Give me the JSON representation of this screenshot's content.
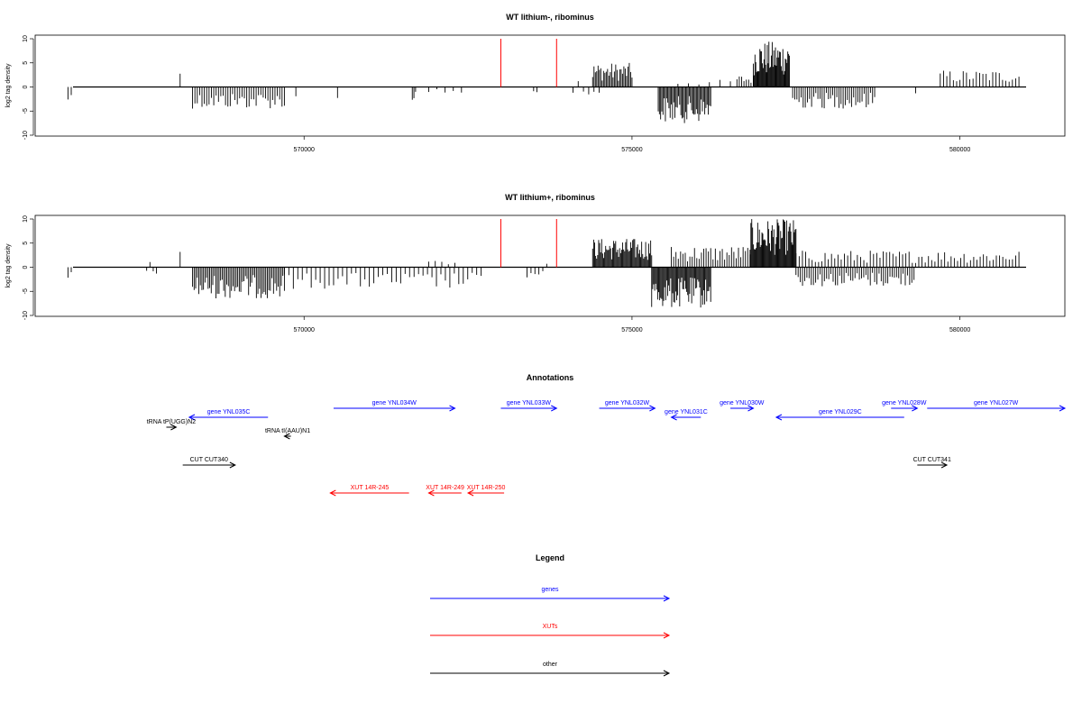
{
  "chart_data": [
    {
      "type": "bar",
      "title": "WT lithium-, riboминus",
      "ylabel": "log2 tag density",
      "xlabel": "",
      "xlim": [
        565900,
        581600
      ],
      "ylim": [
        -10,
        10
      ],
      "x_ticks": [
        "570000",
        "575000",
        "580000"
      ],
      "y_ticks": [
        "10",
        "5",
        "0",
        "-5",
        "-10"
      ],
      "features": [
        {
          "name": "highlight-1",
          "x": 573000,
          "color": "#ff0000"
        },
        {
          "name": "highlight-2",
          "x": 573850,
          "color": "#ff0000"
        }
      ],
      "segments": [
        {
          "start": 566400,
          "end": 566450,
          "min": -3.5,
          "max": 0,
          "density": 2
        },
        {
          "start": 568100,
          "end": 568120,
          "min": 0,
          "max": 3.8,
          "density": 1
        },
        {
          "start": 568300,
          "end": 569700,
          "min": -4.5,
          "max": 0,
          "density": 40
        },
        {
          "start": 569850,
          "end": 569900,
          "min": -4.0,
          "max": 0,
          "density": 1
        },
        {
          "start": 570500,
          "end": 570520,
          "min": -3.5,
          "max": 0,
          "density": 1
        },
        {
          "start": 571650,
          "end": 571700,
          "min": -3.0,
          "max": 0,
          "density": 3
        },
        {
          "start": 571900,
          "end": 572400,
          "min": -1.5,
          "max": 0,
          "density": 5
        },
        {
          "start": 573500,
          "end": 573550,
          "min": -2.0,
          "max": 0,
          "density": 2
        },
        {
          "start": 574100,
          "end": 574500,
          "min": -2.0,
          "max": 2.0,
          "density": 6
        },
        {
          "start": 574400,
          "end": 575000,
          "min": 0,
          "max": 5.0,
          "density": 30
        },
        {
          "start": 575400,
          "end": 576200,
          "min": -7.5,
          "max": 0,
          "density": 45
        },
        {
          "start": 575700,
          "end": 576500,
          "min": 0,
          "max": 1.5,
          "density": 6
        },
        {
          "start": 576600,
          "end": 576850,
          "min": 0,
          "max": 2.5,
          "density": 8
        },
        {
          "start": 576850,
          "end": 577400,
          "min": 0,
          "max": 9.5,
          "density": 45
        },
        {
          "start": 577450,
          "end": 578700,
          "min": -4.5,
          "max": 0,
          "density": 40
        },
        {
          "start": 579300,
          "end": 579350,
          "min": -1.5,
          "max": 0,
          "density": 1
        },
        {
          "start": 579700,
          "end": 580900,
          "min": 0,
          "max": 3.5,
          "density": 25
        }
      ]
    },
    {
      "type": "bar",
      "title": "WT lithium+, riboминus",
      "ylabel": "log2 tag density",
      "xlabel": "",
      "xlim": [
        565900,
        581600
      ],
      "ylim": [
        -10,
        10
      ],
      "x_ticks": [
        "570000",
        "575000",
        "580000"
      ],
      "y_ticks": [
        "10",
        "5",
        "0",
        "-5",
        "-10"
      ],
      "features": [
        {
          "name": "highlight-1",
          "x": 573000,
          "color": "#ff0000"
        },
        {
          "name": "highlight-2",
          "x": 573850,
          "color": "#ff0000"
        }
      ],
      "segments": [
        {
          "start": 566400,
          "end": 566450,
          "min": -3.5,
          "max": 0,
          "density": 2
        },
        {
          "start": 567600,
          "end": 567650,
          "min": -1.0,
          "max": 2.5,
          "density": 2
        },
        {
          "start": 567700,
          "end": 567750,
          "min": -3.0,
          "max": 0,
          "density": 2
        },
        {
          "start": 568100,
          "end": 568120,
          "min": 0,
          "max": 3.8,
          "density": 1
        },
        {
          "start": 568300,
          "end": 569700,
          "min": -6.5,
          "max": 0,
          "density": 60
        },
        {
          "start": 569700,
          "end": 572700,
          "min": -4.5,
          "max": 0,
          "density": 45
        },
        {
          "start": 571900,
          "end": 572300,
          "min": 0,
          "max": 1.5,
          "density": 5
        },
        {
          "start": 573400,
          "end": 573700,
          "min": -2.5,
          "max": 2.0,
          "density": 6
        },
        {
          "start": 574400,
          "end": 575300,
          "min": 0,
          "max": 6.0,
          "density": 60
        },
        {
          "start": 575300,
          "end": 576200,
          "min": -8.5,
          "max": 0,
          "density": 60
        },
        {
          "start": 575600,
          "end": 576800,
          "min": 0,
          "max": 4.5,
          "density": 35
        },
        {
          "start": 576800,
          "end": 577500,
          "min": 0,
          "max": 10.0,
          "density": 55
        },
        {
          "start": 577500,
          "end": 579300,
          "min": -4.0,
          "max": 0,
          "density": 55
        },
        {
          "start": 577500,
          "end": 580900,
          "min": 0,
          "max": 3.5,
          "density": 70
        }
      ]
    }
  ],
  "annotations": {
    "title": "Annotations",
    "features": [
      {
        "label": "gene YNL035C",
        "start": 569450,
        "end": 568250,
        "row": 1,
        "color": "#0000ff"
      },
      {
        "label": "tRNA tP(UGG)N2",
        "start": 567900,
        "end": 568050,
        "row": 2,
        "color": "#000000"
      },
      {
        "label": "tRNA tI(AAU)N1",
        "start": 569800,
        "end": 569700,
        "row": 3,
        "color": "#000000"
      },
      {
        "label": "gene YNL034W",
        "start": 570450,
        "end": 572300,
        "row": 0,
        "color": "#0000ff"
      },
      {
        "label": "gene YNL033W",
        "start": 573000,
        "end": 573850,
        "row": 0,
        "color": "#0000ff"
      },
      {
        "label": "gene YNL032W",
        "start": 574500,
        "end": 575350,
        "row": 0,
        "color": "#0000ff"
      },
      {
        "label": "gene YNL031C",
        "start": 576050,
        "end": 575600,
        "row": 1,
        "color": "#0000ff"
      },
      {
        "label": "gene YNL030W",
        "start": 576500,
        "end": 576850,
        "row": 0,
        "color": "#0000ff"
      },
      {
        "label": "gene YNL029C",
        "start": 579150,
        "end": 577200,
        "row": 1,
        "color": "#0000ff"
      },
      {
        "label": "gene YNL028W",
        "start": 578950,
        "end": 579350,
        "row": 0,
        "color": "#0000ff"
      },
      {
        "label": "gene YNL027W",
        "start": 579500,
        "end": 581600,
        "row": 0,
        "color": "#0000ff"
      },
      {
        "label": "CUT CUT340",
        "start": 568150,
        "end": 568950,
        "row": 4,
        "color": "#000000"
      },
      {
        "label": "CUT CUT341",
        "start": 579350,
        "end": 579800,
        "row": 4,
        "color": "#000000"
      },
      {
        "label": "XUT 14R-245",
        "start": 571600,
        "end": 570400,
        "row": 5,
        "color": "#ff0000"
      },
      {
        "label": "XUT 14R-249",
        "start": 572400,
        "end": 571900,
        "row": 5,
        "color": "#ff0000"
      },
      {
        "label": "XUT 14R-250",
        "start": 573050,
        "end": 572500,
        "row": 5,
        "color": "#ff0000"
      }
    ]
  },
  "legend": {
    "title": "Legend",
    "items": [
      {
        "label": "genes",
        "color": "#0000ff"
      },
      {
        "label": "XUTs",
        "color": "#ff0000"
      },
      {
        "label": "other",
        "color": "#000000"
      }
    ]
  }
}
